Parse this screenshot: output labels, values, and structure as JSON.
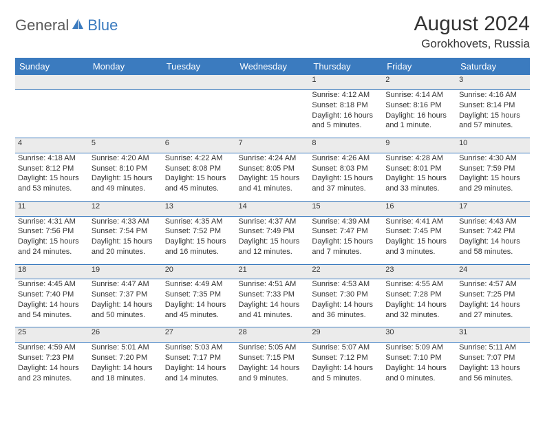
{
  "brand": {
    "part1": "General",
    "part2": "Blue"
  },
  "title": "August 2024",
  "location": "Gorokhovets, Russia",
  "colors": {
    "header_bg": "#3b7bbf",
    "header_text": "#ffffff",
    "daynum_bg": "#ebebeb",
    "body_text": "#333333",
    "rule": "#3b7bbf"
  },
  "weekdays": [
    "Sunday",
    "Monday",
    "Tuesday",
    "Wednesday",
    "Thursday",
    "Friday",
    "Saturday"
  ],
  "weeks": [
    [
      null,
      null,
      null,
      null,
      {
        "n": "1",
        "sr": "Sunrise: 4:12 AM",
        "ss": "Sunset: 8:18 PM",
        "d1": "Daylight: 16 hours",
        "d2": "and 5 minutes."
      },
      {
        "n": "2",
        "sr": "Sunrise: 4:14 AM",
        "ss": "Sunset: 8:16 PM",
        "d1": "Daylight: 16 hours",
        "d2": "and 1 minute."
      },
      {
        "n": "3",
        "sr": "Sunrise: 4:16 AM",
        "ss": "Sunset: 8:14 PM",
        "d1": "Daylight: 15 hours",
        "d2": "and 57 minutes."
      }
    ],
    [
      {
        "n": "4",
        "sr": "Sunrise: 4:18 AM",
        "ss": "Sunset: 8:12 PM",
        "d1": "Daylight: 15 hours",
        "d2": "and 53 minutes."
      },
      {
        "n": "5",
        "sr": "Sunrise: 4:20 AM",
        "ss": "Sunset: 8:10 PM",
        "d1": "Daylight: 15 hours",
        "d2": "and 49 minutes."
      },
      {
        "n": "6",
        "sr": "Sunrise: 4:22 AM",
        "ss": "Sunset: 8:08 PM",
        "d1": "Daylight: 15 hours",
        "d2": "and 45 minutes."
      },
      {
        "n": "7",
        "sr": "Sunrise: 4:24 AM",
        "ss": "Sunset: 8:05 PM",
        "d1": "Daylight: 15 hours",
        "d2": "and 41 minutes."
      },
      {
        "n": "8",
        "sr": "Sunrise: 4:26 AM",
        "ss": "Sunset: 8:03 PM",
        "d1": "Daylight: 15 hours",
        "d2": "and 37 minutes."
      },
      {
        "n": "9",
        "sr": "Sunrise: 4:28 AM",
        "ss": "Sunset: 8:01 PM",
        "d1": "Daylight: 15 hours",
        "d2": "and 33 minutes."
      },
      {
        "n": "10",
        "sr": "Sunrise: 4:30 AM",
        "ss": "Sunset: 7:59 PM",
        "d1": "Daylight: 15 hours",
        "d2": "and 29 minutes."
      }
    ],
    [
      {
        "n": "11",
        "sr": "Sunrise: 4:31 AM",
        "ss": "Sunset: 7:56 PM",
        "d1": "Daylight: 15 hours",
        "d2": "and 24 minutes."
      },
      {
        "n": "12",
        "sr": "Sunrise: 4:33 AM",
        "ss": "Sunset: 7:54 PM",
        "d1": "Daylight: 15 hours",
        "d2": "and 20 minutes."
      },
      {
        "n": "13",
        "sr": "Sunrise: 4:35 AM",
        "ss": "Sunset: 7:52 PM",
        "d1": "Daylight: 15 hours",
        "d2": "and 16 minutes."
      },
      {
        "n": "14",
        "sr": "Sunrise: 4:37 AM",
        "ss": "Sunset: 7:49 PM",
        "d1": "Daylight: 15 hours",
        "d2": "and 12 minutes."
      },
      {
        "n": "15",
        "sr": "Sunrise: 4:39 AM",
        "ss": "Sunset: 7:47 PM",
        "d1": "Daylight: 15 hours",
        "d2": "and 7 minutes."
      },
      {
        "n": "16",
        "sr": "Sunrise: 4:41 AM",
        "ss": "Sunset: 7:45 PM",
        "d1": "Daylight: 15 hours",
        "d2": "and 3 minutes."
      },
      {
        "n": "17",
        "sr": "Sunrise: 4:43 AM",
        "ss": "Sunset: 7:42 PM",
        "d1": "Daylight: 14 hours",
        "d2": "and 58 minutes."
      }
    ],
    [
      {
        "n": "18",
        "sr": "Sunrise: 4:45 AM",
        "ss": "Sunset: 7:40 PM",
        "d1": "Daylight: 14 hours",
        "d2": "and 54 minutes."
      },
      {
        "n": "19",
        "sr": "Sunrise: 4:47 AM",
        "ss": "Sunset: 7:37 PM",
        "d1": "Daylight: 14 hours",
        "d2": "and 50 minutes."
      },
      {
        "n": "20",
        "sr": "Sunrise: 4:49 AM",
        "ss": "Sunset: 7:35 PM",
        "d1": "Daylight: 14 hours",
        "d2": "and 45 minutes."
      },
      {
        "n": "21",
        "sr": "Sunrise: 4:51 AM",
        "ss": "Sunset: 7:33 PM",
        "d1": "Daylight: 14 hours",
        "d2": "and 41 minutes."
      },
      {
        "n": "22",
        "sr": "Sunrise: 4:53 AM",
        "ss": "Sunset: 7:30 PM",
        "d1": "Daylight: 14 hours",
        "d2": "and 36 minutes."
      },
      {
        "n": "23",
        "sr": "Sunrise: 4:55 AM",
        "ss": "Sunset: 7:28 PM",
        "d1": "Daylight: 14 hours",
        "d2": "and 32 minutes."
      },
      {
        "n": "24",
        "sr": "Sunrise: 4:57 AM",
        "ss": "Sunset: 7:25 PM",
        "d1": "Daylight: 14 hours",
        "d2": "and 27 minutes."
      }
    ],
    [
      {
        "n": "25",
        "sr": "Sunrise: 4:59 AM",
        "ss": "Sunset: 7:23 PM",
        "d1": "Daylight: 14 hours",
        "d2": "and 23 minutes."
      },
      {
        "n": "26",
        "sr": "Sunrise: 5:01 AM",
        "ss": "Sunset: 7:20 PM",
        "d1": "Daylight: 14 hours",
        "d2": "and 18 minutes."
      },
      {
        "n": "27",
        "sr": "Sunrise: 5:03 AM",
        "ss": "Sunset: 7:17 PM",
        "d1": "Daylight: 14 hours",
        "d2": "and 14 minutes."
      },
      {
        "n": "28",
        "sr": "Sunrise: 5:05 AM",
        "ss": "Sunset: 7:15 PM",
        "d1": "Daylight: 14 hours",
        "d2": "and 9 minutes."
      },
      {
        "n": "29",
        "sr": "Sunrise: 5:07 AM",
        "ss": "Sunset: 7:12 PM",
        "d1": "Daylight: 14 hours",
        "d2": "and 5 minutes."
      },
      {
        "n": "30",
        "sr": "Sunrise: 5:09 AM",
        "ss": "Sunset: 7:10 PM",
        "d1": "Daylight: 14 hours",
        "d2": "and 0 minutes."
      },
      {
        "n": "31",
        "sr": "Sunrise: 5:11 AM",
        "ss": "Sunset: 7:07 PM",
        "d1": "Daylight: 13 hours",
        "d2": "and 56 minutes."
      }
    ]
  ]
}
